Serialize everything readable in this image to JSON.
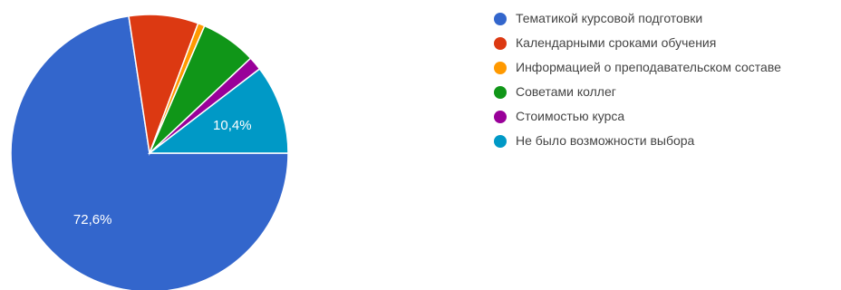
{
  "chart_data": {
    "type": "pie",
    "slices": [
      {
        "label": "Тематикой курсовой подготовки",
        "value": 72.6,
        "color": "#3366cc",
        "display": "72,6%"
      },
      {
        "label": "Календарными сроками обучения",
        "value": 8.1,
        "color": "#dc3912",
        "display": ""
      },
      {
        "label": "Информацией о преподавательском составе",
        "value": 0.8,
        "color": "#ff9900",
        "display": ""
      },
      {
        "label": "Советами коллег",
        "value": 6.5,
        "color": "#109618",
        "display": ""
      },
      {
        "label": "Стоимостью курса",
        "value": 1.6,
        "color": "#990099",
        "display": ""
      },
      {
        "label": "Не было возможности выбора",
        "value": 10.4,
        "color": "#0099c6",
        "display": "10,4%"
      }
    ],
    "legend_position": "right"
  }
}
